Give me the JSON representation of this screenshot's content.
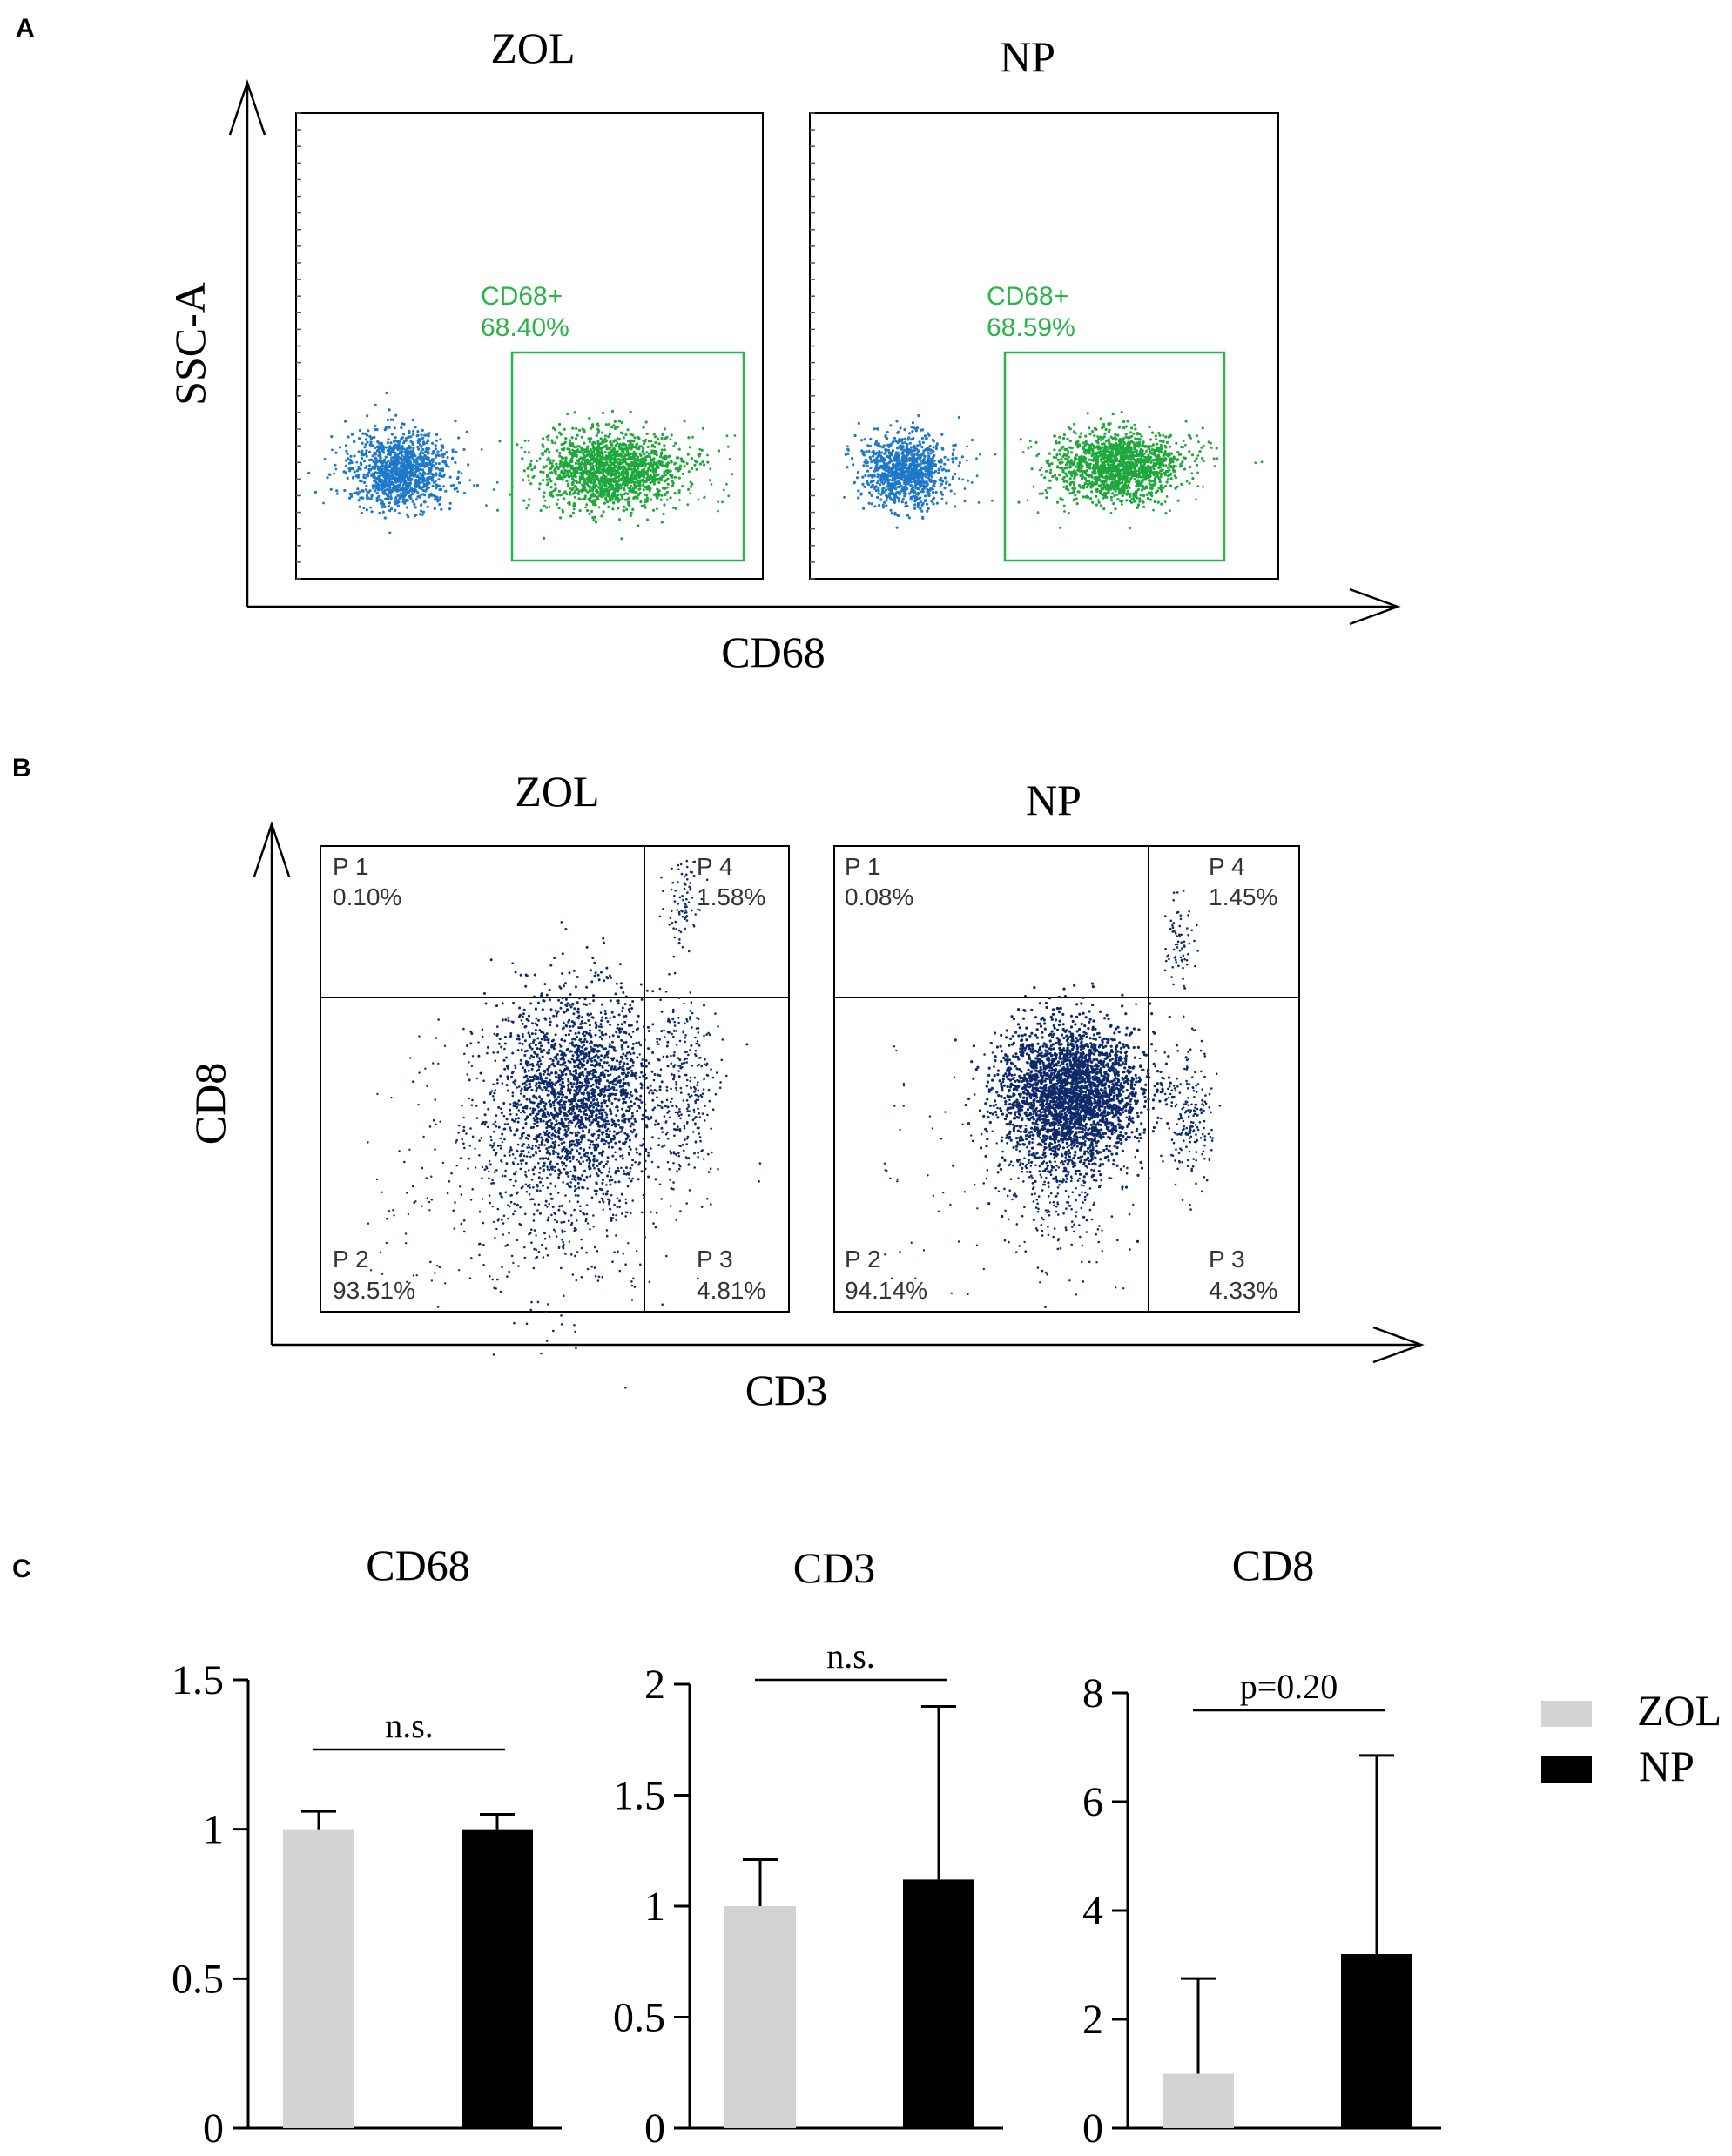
{
  "panel_a": {
    "letter": "A",
    "x_axis_label": "CD68",
    "y_axis_label": "SSC-A",
    "plots": [
      {
        "title": "ZOL",
        "gate_name": "CD68+",
        "gate_value": "68.40%"
      },
      {
        "title": "NP",
        "gate_name": "CD68+",
        "gate_value": "68.59%"
      }
    ]
  },
  "panel_b": {
    "letter": "B",
    "x_axis_label": "CD3",
    "y_axis_label": "CD8",
    "plots": [
      {
        "title": "ZOL",
        "quadrants": [
          {
            "name": "P 1",
            "value": "0.10%"
          },
          {
            "name": "P 4",
            "value": "1.58%"
          },
          {
            "name": "P 2",
            "value": "93.51%"
          },
          {
            "name": "P 3",
            "value": "4.81%"
          }
        ]
      },
      {
        "title": "NP",
        "quadrants": [
          {
            "name": "P 1",
            "value": "0.08%"
          },
          {
            "name": "P 4",
            "value": "1.45%"
          },
          {
            "name": "P 2",
            "value": "94.14%"
          },
          {
            "name": "P 3",
            "value": "4.33%"
          }
        ]
      }
    ]
  },
  "panel_c": {
    "letter": "C",
    "legend": [
      {
        "label": "ZOL",
        "color": "#d3d3d3"
      },
      {
        "label": "NP",
        "color": "#000000"
      }
    ]
  },
  "chart_data": [
    {
      "type": "bar",
      "title": "CD68",
      "categories": [
        "ZOL",
        "NP"
      ],
      "values": [
        1.0,
        1.0
      ],
      "errors": [
        0.06,
        0.05
      ],
      "ylim": [
        0,
        1.5
      ],
      "yticks": [
        0,
        0.5,
        1,
        1.5
      ],
      "ytick_labels": [
        "0",
        "0.5",
        "1",
        "1.5"
      ],
      "annotation": "n.s."
    },
    {
      "type": "bar",
      "title": "CD3",
      "categories": [
        "ZOL",
        "NP"
      ],
      "values": [
        1.0,
        1.12
      ],
      "errors": [
        0.21,
        0.78
      ],
      "ylim": [
        0,
        2
      ],
      "yticks": [
        0,
        0.5,
        1,
        1.5,
        2
      ],
      "ytick_labels": [
        "0",
        "0.5",
        "1",
        "1.5",
        "2"
      ],
      "annotation": "n.s."
    },
    {
      "type": "bar",
      "title": "CD8",
      "categories": [
        "ZOL",
        "NP"
      ],
      "values": [
        1.0,
        3.2
      ],
      "errors": [
        1.75,
        3.65
      ],
      "ylim": [
        0,
        8
      ],
      "yticks": [
        0,
        2,
        4,
        6,
        8
      ],
      "ytick_labels": [
        "0",
        "2",
        "4",
        "6",
        "8"
      ],
      "annotation": "p=0.20"
    }
  ]
}
